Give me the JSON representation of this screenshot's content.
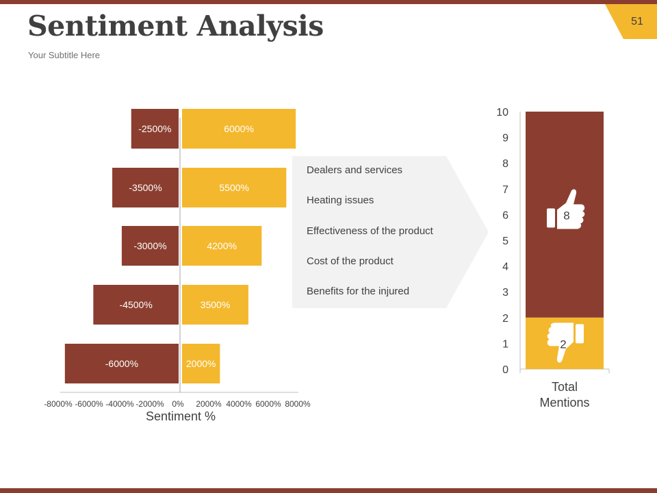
{
  "slide": {
    "title": "Sentiment Analysis",
    "subtitle": "Your Subtitle Here",
    "page_number": "51"
  },
  "colors": {
    "negative": "#8B3E2F",
    "positive": "#F4B82E",
    "accent_bar": "#8B3E2F",
    "panel": "#F2F2F2"
  },
  "categories_panel": {
    "items": [
      "Dealers and services",
      "Heating issues",
      "Effectiveness of the product",
      "Cost of the product",
      "Benefits for the injured"
    ]
  },
  "chart_data": [
    {
      "type": "bar",
      "orientation": "horizontal",
      "stacked": true,
      "categories": [
        "",
        "",
        "",
        "",
        ""
      ],
      "series": [
        {
          "values": [
            -2500,
            -3500,
            -3000,
            -4500,
            -6000
          ],
          "labels": [
            "-2500%",
            "-3500%",
            "-3000%",
            "-4500%",
            "-6000%"
          ]
        },
        {
          "values": [
            6000,
            5500,
            4200,
            3500,
            2000
          ],
          "labels": [
            "6000%",
            "5500%",
            "4200%",
            "3500%",
            "2000%"
          ]
        }
      ],
      "xlabel": "Sentiment %",
      "ylabel": "",
      "xlim": [
        -8000,
        8000
      ],
      "xticks": [
        -8000,
        -6000,
        -4000,
        -2000,
        0,
        2000,
        4000,
        6000,
        8000
      ],
      "xtick_labels": [
        "-8000%",
        "-6000%",
        "-4000%",
        "-2000%",
        "0%",
        "2000%",
        "4000%",
        "6000%",
        "8000%"
      ],
      "grid": false,
      "legend": "none"
    },
    {
      "type": "bar",
      "orientation": "vertical",
      "stacked": true,
      "categories": [
        "Total Mentions"
      ],
      "series": [
        {
          "values": [
            2
          ],
          "label": "2",
          "icon": "thumbs-down-icon"
        },
        {
          "values": [
            8
          ],
          "label": "8",
          "icon": "thumbs-up-icon"
        }
      ],
      "ylim": [
        0,
        10
      ],
      "yticks": [
        0,
        1,
        2,
        3,
        4,
        5,
        6,
        7,
        8,
        9,
        10
      ],
      "xlabel": "",
      "ylabel": "",
      "grid": false,
      "legend": "none"
    }
  ]
}
